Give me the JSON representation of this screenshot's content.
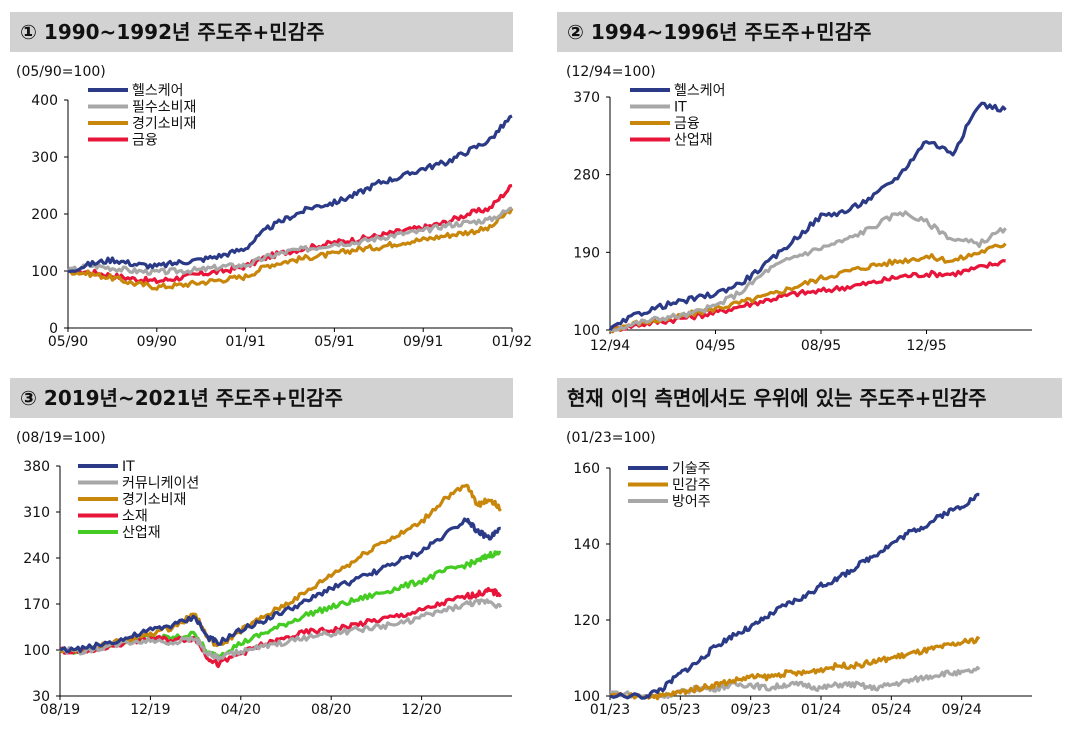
{
  "panels": [
    {
      "title": "① 1990~1992년 주도주+민감주",
      "unit": "(05/90=100)",
      "chart_data": {
        "type": "line",
        "ylim": [
          0,
          400
        ],
        "yticks": [
          0,
          100,
          200,
          300,
          400
        ],
        "xlim": [
          0,
          20
        ],
        "xticks": [
          {
            "x": 0,
            "label": "05/90"
          },
          {
            "x": 4,
            "label": "09/90"
          },
          {
            "x": 8,
            "label": "01/91"
          },
          {
            "x": 12,
            "label": "05/91"
          },
          {
            "x": 16,
            "label": "09/91"
          },
          {
            "x": 20,
            "label": "01/92"
          }
        ],
        "x": [
          0,
          1,
          2,
          3,
          4,
          5,
          6,
          7,
          8,
          9,
          10,
          11,
          12,
          13,
          14,
          15,
          16,
          17,
          18,
          19,
          20
        ],
        "series": [
          {
            "name": "헬스케어",
            "color": "#2b3a86",
            "values": [
              100,
              112,
              120,
              112,
              108,
              115,
              120,
              128,
              140,
              175,
              195,
              212,
              220,
              235,
              255,
              265,
              280,
              290,
              310,
              330,
              372
            ]
          },
          {
            "name": "필수소비재",
            "color": "#a7a7a7",
            "values": [
              100,
              110,
              105,
              100,
              98,
              100,
              102,
              108,
              110,
              125,
              135,
              140,
              148,
              150,
              158,
              165,
              170,
              180,
              185,
              190,
              210
            ]
          },
          {
            "name": "경기소비재",
            "color": "#c8860a",
            "values": [
              100,
              95,
              88,
              78,
              72,
              75,
              80,
              85,
              90,
              110,
              118,
              125,
              130,
              138,
              142,
              150,
              155,
              162,
              168,
              175,
              210
            ]
          },
          {
            "name": "금융",
            "color": "#e8153a",
            "values": [
              100,
              98,
              92,
              86,
              82,
              88,
              95,
              100,
              108,
              125,
              135,
              142,
              150,
              155,
              162,
              170,
              176,
              185,
              200,
              210,
              250
            ]
          }
        ]
      }
    },
    {
      "title": "② 1994~1996년 주도주+민감주",
      "unit": "(12/94=100)",
      "chart_data": {
        "type": "line",
        "ylim": [
          100,
          370
        ],
        "yticks": [
          100,
          190,
          280,
          370
        ],
        "xlim": [
          0,
          16
        ],
        "xticks": [
          {
            "x": 0,
            "label": "12/94"
          },
          {
            "x": 4,
            "label": "04/95"
          },
          {
            "x": 8,
            "label": "08/95"
          },
          {
            "x": 12,
            "label": "12/95"
          }
        ],
        "x": [
          0,
          1,
          2,
          3,
          4,
          5,
          6,
          7,
          8,
          9,
          10,
          11,
          12,
          13,
          14,
          15
        ],
        "series": [
          {
            "name": "헬스케어",
            "color": "#2b3a86",
            "values": [
              100,
              118,
              128,
              135,
              142,
              155,
              178,
              205,
              232,
              238,
              255,
              280,
              320,
              305,
              362,
              355
            ]
          },
          {
            "name": "IT",
            "color": "#a7a7a7",
            "values": [
              100,
              108,
              114,
              118,
              128,
              145,
              170,
              185,
              195,
              205,
              220,
              237,
              225,
              205,
              200,
              218
            ]
          },
          {
            "name": "금융",
            "color": "#c8860a",
            "values": [
              100,
              108,
              112,
              118,
              125,
              132,
              140,
              150,
              160,
              168,
              175,
              180,
              185,
              180,
              190,
              200
            ]
          },
          {
            "name": "산업재",
            "color": "#e8153a",
            "values": [
              100,
              106,
              110,
              115,
              120,
              128,
              135,
              142,
              145,
              150,
              155,
              162,
              165,
              165,
              172,
              180
            ]
          }
        ]
      }
    },
    {
      "title": "③ 2019년~2021년 주도주+민감주",
      "unit": "(08/19=100)",
      "chart_data": {
        "type": "line",
        "ylim": [
          30,
          380
        ],
        "yticks": [
          30,
          100,
          170,
          240,
          310,
          380
        ],
        "xlim": [
          0,
          20
        ],
        "xticks": [
          {
            "x": 0,
            "label": "08/19"
          },
          {
            "x": 4,
            "label": "12/19"
          },
          {
            "x": 8,
            "label": "04/20"
          },
          {
            "x": 12,
            "label": "08/20"
          },
          {
            "x": 16,
            "label": "12/20"
          }
        ],
        "x": [
          0,
          1,
          2,
          3,
          4,
          5,
          6,
          6.5,
          7,
          8,
          9,
          10,
          11,
          12,
          13,
          14,
          15,
          16,
          17,
          18,
          18.5,
          19,
          19.5
        ],
        "series": [
          {
            "name": "IT",
            "color": "#2b3a86",
            "values": [
              100,
              102,
              110,
              118,
              130,
              138,
              150,
              120,
              110,
              130,
              145,
              160,
              175,
              195,
              205,
              220,
              235,
              250,
              275,
              300,
              280,
              270,
              285
            ]
          },
          {
            "name": "커뮤니케이션",
            "color": "#a7a7a7",
            "values": [
              100,
              98,
              105,
              112,
              115,
              112,
              118,
              95,
              88,
              98,
              105,
              112,
              120,
              125,
              130,
              135,
              140,
              150,
              160,
              170,
              172,
              175,
              165
            ]
          },
          {
            "name": "경기소비재",
            "color": "#c8860a",
            "values": [
              100,
              100,
              108,
              115,
              125,
              135,
              155,
              120,
              105,
              130,
              150,
              170,
              190,
              215,
              235,
              260,
              275,
              295,
              330,
              350,
              320,
              330,
              315
            ]
          },
          {
            "name": "소재",
            "color": "#e8153a",
            "values": [
              100,
              96,
              104,
              112,
              118,
              115,
              118,
              90,
              78,
              95,
              108,
              118,
              128,
              130,
              138,
              145,
              152,
              160,
              172,
              182,
              185,
              190,
              185
            ]
          },
          {
            "name": "산업재",
            "color": "#44cc22",
            "values": [
              100,
              98,
              106,
              115,
              120,
              118,
              125,
              95,
              92,
              110,
              125,
              140,
              155,
              165,
              175,
              185,
              195,
              205,
              220,
              230,
              235,
              245,
              248
            ]
          }
        ]
      }
    },
    {
      "title": "현재 이익 측면에서도 우위에 있는 주도주+민감주",
      "unit": "(01/23=100)",
      "chart_data": {
        "type": "line",
        "ylim": [
          100,
          160
        ],
        "yticks": [
          100,
          120,
          140,
          160
        ],
        "xlim": [
          0,
          24
        ],
        "xticks": [
          {
            "x": 0,
            "label": "01/23"
          },
          {
            "x": 4,
            "label": "05/23"
          },
          {
            "x": 8,
            "label": "09/23"
          },
          {
            "x": 12,
            "label": "01/24"
          },
          {
            "x": 16,
            "label": "05/24"
          },
          {
            "x": 20,
            "label": "09/24"
          }
        ],
        "x": [
          0,
          2,
          3,
          4,
          5,
          6,
          7,
          8,
          9,
          10,
          11,
          12,
          13,
          14,
          15,
          16,
          17,
          18,
          19,
          20,
          21
        ],
        "series": [
          {
            "name": "기술주",
            "color": "#2b3a86",
            "values": [
              100,
              100,
              102,
              106,
              109,
              113,
              116,
              118,
              121,
              124,
              126,
              129,
              131,
              134,
              137,
              140,
              143,
              145,
              148,
              150,
              153
            ]
          },
          {
            "name": "민감주",
            "color": "#c8860a",
            "values": [
              100,
              100,
              100,
              101,
              102,
              103,
              104,
              105,
              105,
              106,
              106,
              107,
              108,
              108,
              109,
              110,
              111,
              112,
              113,
              114,
              115
            ]
          },
          {
            "name": "방어주",
            "color": "#a7a7a7",
            "values": [
              101,
              100,
              100,
              101,
              102,
              102,
              103,
              103,
              102,
              103,
              103,
              102,
              103,
              103,
              102,
              103,
              104,
              105,
              106,
              106,
              107
            ]
          }
        ]
      }
    }
  ]
}
